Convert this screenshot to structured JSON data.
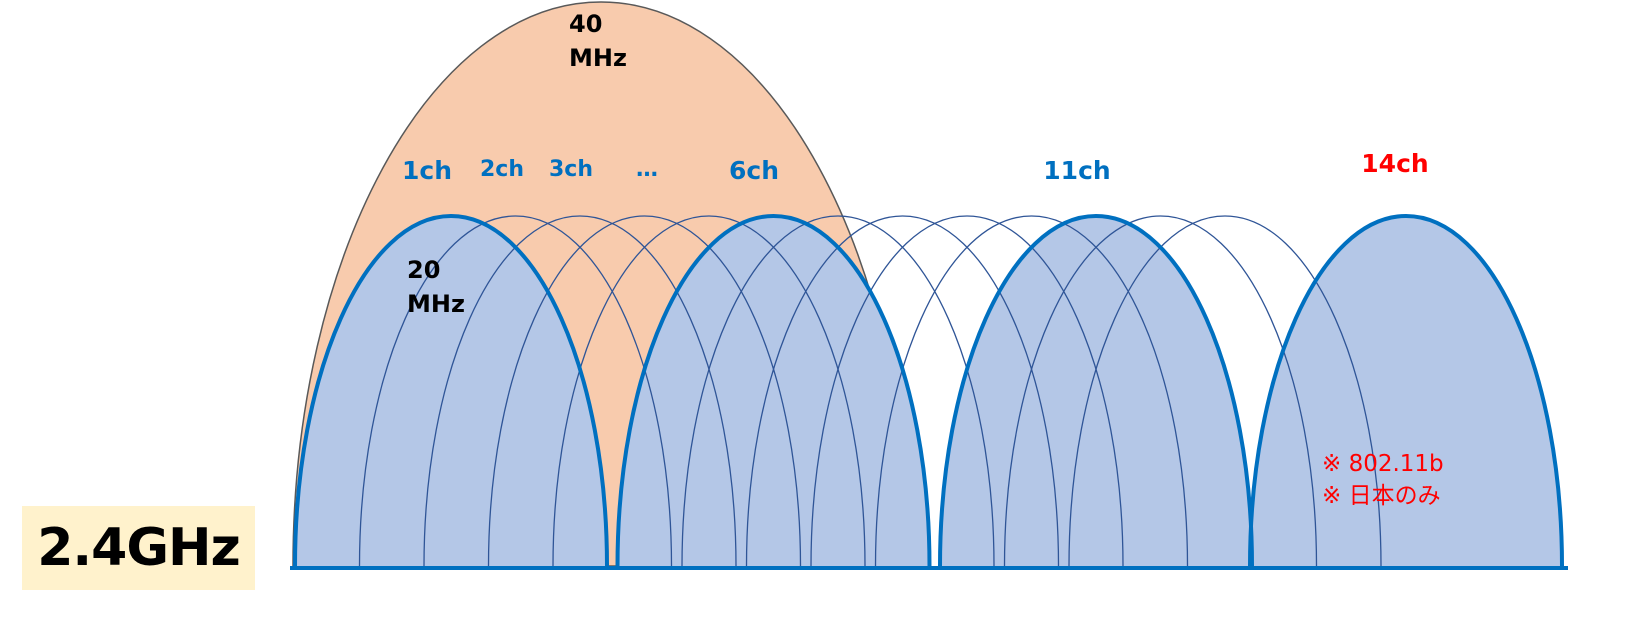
{
  "band": {
    "label": "2.4GHz"
  },
  "colors": {
    "wide_channel_fill": "#f8cbad",
    "wide_channel_stroke": "#595959",
    "channel_fill": "#b4c7e7",
    "highlight_stroke": "#0070c0",
    "thin_stroke": "#2f5597",
    "label_blue": "#0070c0",
    "label_red": "#ff0000",
    "band_box": "#fff2cc"
  },
  "wide_channel": {
    "width_label_line1": "40",
    "width_label_line2": "MHz"
  },
  "channel_width": {
    "label_line1": "20",
    "label_line2": "MHz"
  },
  "channels": [
    {
      "number": 1,
      "label": "1ch",
      "highlight": true
    },
    {
      "number": 2,
      "label": "2ch",
      "highlight": false
    },
    {
      "number": 3,
      "label": "3ch",
      "highlight": false
    },
    {
      "number": 4,
      "label": "",
      "highlight": false
    },
    {
      "number": 5,
      "label": "",
      "highlight": false
    },
    {
      "number": 6,
      "label": "6ch",
      "highlight": true
    },
    {
      "number": 7,
      "label": "",
      "highlight": false
    },
    {
      "number": 8,
      "label": "",
      "highlight": false
    },
    {
      "number": 9,
      "label": "",
      "highlight": false
    },
    {
      "number": 10,
      "label": "",
      "highlight": false
    },
    {
      "number": 11,
      "label": "11ch",
      "highlight": true
    },
    {
      "number": 12,
      "label": "",
      "highlight": false
    },
    {
      "number": 13,
      "label": "",
      "highlight": false
    },
    {
      "number": 14,
      "label": "14ch",
      "highlight": true,
      "special": true
    }
  ],
  "ellipsis_label": "…",
  "notes": [
    "※ 802.11b",
    "※ 日本のみ"
  ]
}
